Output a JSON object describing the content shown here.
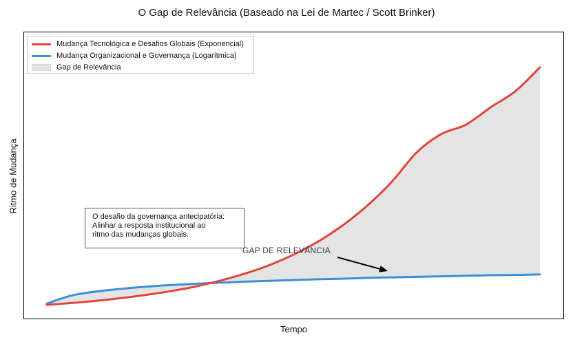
{
  "chart_data": {
    "type": "line",
    "title": "O Gap de Relevância (Baseado na Lei de Martec / Scott Brinker)",
    "xlabel": "Tempo",
    "ylabel": "Ritmo de Mudança",
    "grid": false,
    "legend_placement": "top-left",
    "xlim": [
      0,
      10
    ],
    "ylim": [
      0,
      10
    ],
    "x": [
      0,
      0.5,
      1,
      1.5,
      2,
      2.5,
      3,
      3.5,
      4,
      4.5,
      5,
      5.5,
      6,
      6.5,
      7,
      7.5,
      8,
      8.5,
      9,
      9.5,
      10
    ],
    "series": [
      {
        "name": "Mudança Tecnológica e Desafios Globais (Exponencial)",
        "color": "#e0453a",
        "values": [
          0.1,
          0.17,
          0.25,
          0.35,
          0.47,
          0.61,
          0.78,
          1.0,
          1.26,
          1.58,
          1.98,
          2.47,
          3.08,
          3.82,
          4.72,
          5.81,
          6.5,
          6.85,
          7.5,
          8.1,
          9.0
        ]
      },
      {
        "name": "Mudança Organizacional e Governança (Logarítmica)",
        "color": "#3a8fd6",
        "values": [
          0.15,
          0.45,
          0.6,
          0.7,
          0.78,
          0.84,
          0.89,
          0.93,
          0.97,
          1.0,
          1.03,
          1.06,
          1.08,
          1.11,
          1.13,
          1.15,
          1.17,
          1.19,
          1.21,
          1.22,
          1.24
        ]
      }
    ],
    "fill_between": {
      "name": "Gap de Relevância",
      "color": "#e4e4e4"
    },
    "annotations": {
      "box_lines": [
        "O desafio da governança antecipatória:",
        "Alinhar a resposta institucional ao",
        "ritmo das mudanças globais."
      ],
      "arrow_label": "GAP DE RELEVÂNCIA"
    }
  }
}
